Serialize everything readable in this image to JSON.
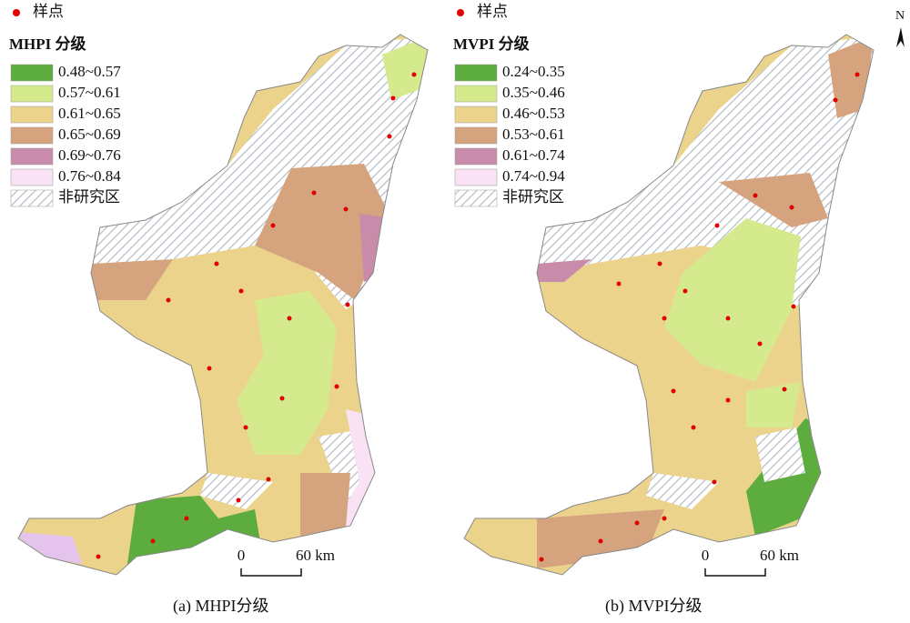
{
  "north": "N",
  "panels": [
    {
      "legend_point": "样点",
      "legend_title": "MHPI 分级",
      "classes": [
        {
          "label": "0.48~0.57",
          "color": "#5cac3e"
        },
        {
          "label": "0.57~0.61",
          "color": "#d5ea8c"
        },
        {
          "label": "0.61~0.65",
          "color": "#ecd38c"
        },
        {
          "label": "0.65~0.69",
          "color": "#d5a47f"
        },
        {
          "label": "0.69~0.76",
          "color": "#c88caa"
        },
        {
          "label": "0.76~0.84",
          "color": "#f8e2f4"
        }
      ],
      "non_study": "非研究区",
      "scale_zero": "0",
      "scale_distance": "60 km",
      "caption": "(a)  MHPI分级"
    },
    {
      "legend_point": "样点",
      "legend_title": "MVPI 分级",
      "classes": [
        {
          "label": "0.24~0.35",
          "color": "#5cac3e"
        },
        {
          "label": "0.35~0.46",
          "color": "#d5ea8c"
        },
        {
          "label": "0.46~0.53",
          "color": "#ecd38c"
        },
        {
          "label": "0.53~0.61",
          "color": "#d5a47f"
        },
        {
          "label": "0.61~0.74",
          "color": "#c88caa"
        },
        {
          "label": "0.74~0.94",
          "color": "#f8e2f4"
        }
      ],
      "non_study": "非研究区",
      "scale_zero": "0",
      "scale_distance": "60 km",
      "caption": "(b) MVPI分级"
    }
  ]
}
